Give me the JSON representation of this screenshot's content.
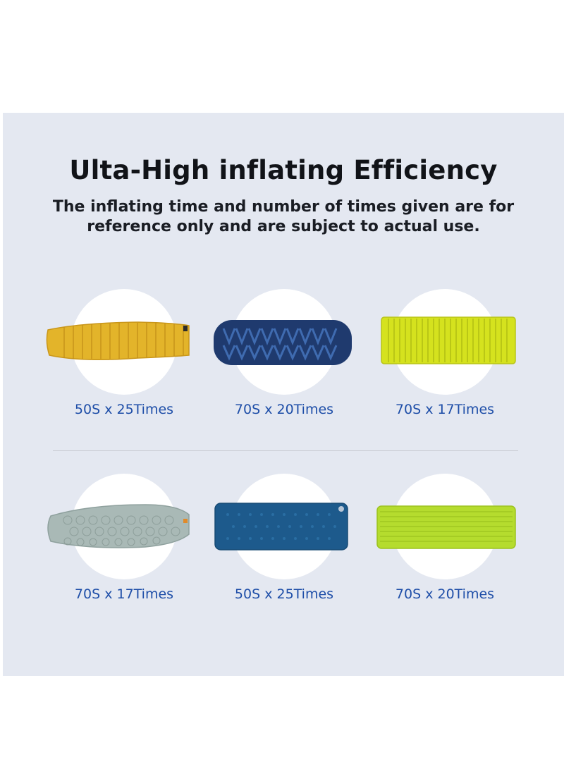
{
  "header": {
    "title": "Ulta-High inflating Efficiency",
    "subtitle_line1": "The inflating time and number of times given are for",
    "subtitle_line2": "reference only and are subject to actual use."
  },
  "colors": {
    "background_panel": "#e4e8f1",
    "label_blue": "#1e4ea8"
  },
  "products": [
    {
      "label": "50S x 25Times",
      "mat_color": "#e3b42a",
      "mat_icon": "yellow-tapered-sleeping-pad-icon"
    },
    {
      "label": "70S x 20Times",
      "mat_color": "#1f3a6e",
      "mat_icon": "navy-v-chamber-sleeping-pad-icon"
    },
    {
      "label": "70S x 17Times",
      "mat_color": "#d5e21e",
      "mat_icon": "lime-ribbed-sleeping-pad-icon"
    },
    {
      "label": "70S x 17Times",
      "mat_color": "#a9b9b6",
      "mat_icon": "grey-quilted-sleeping-pad-icon"
    },
    {
      "label": "50S x 25Times",
      "mat_color": "#1d5a8c",
      "mat_icon": "blue-rectangular-sleeping-pad-icon"
    },
    {
      "label": "70S x 20Times",
      "mat_color": "#b5dc2e",
      "mat_icon": "green-tubed-sleeping-pad-icon"
    }
  ]
}
